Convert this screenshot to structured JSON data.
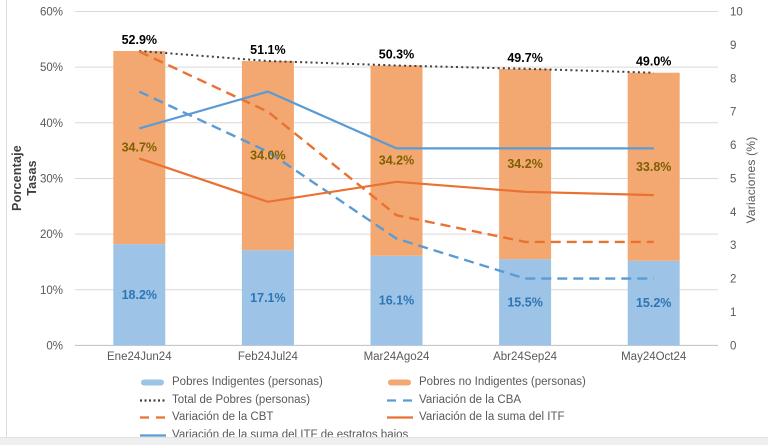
{
  "chart_data": {
    "type": "bar",
    "subtype": "stacked-bars-with-line-overlay",
    "title": "",
    "categories": [
      "Ene24Jun24",
      "Feb24Jul24",
      "Mar24Ago24",
      "Abr24Sep24",
      "May24Oct24"
    ],
    "bar_series": [
      {
        "name": "Pobres Indigentes (personas)",
        "axis": "left",
        "color": "#9DC3E6",
        "label_color": "#2E75B6",
        "values": [
          18.2,
          17.1,
          16.1,
          15.5,
          15.2
        ]
      },
      {
        "name": "Pobres no Indigentes (personas)",
        "axis": "left",
        "color": "#F3A871",
        "label_color": "#7F6000",
        "values": [
          34.7,
          34.0,
          34.2,
          34.2,
          33.8
        ]
      }
    ],
    "line_series": [
      {
        "name": "Total de Pobres (personas)",
        "axis": "left",
        "style": "dotted",
        "color": "#404040",
        "label_color": "#000000",
        "show_labels": true,
        "values": [
          52.9,
          51.1,
          50.3,
          49.7,
          49.0
        ]
      },
      {
        "name": "Variación de la CBA",
        "axis": "right",
        "style": "dashed",
        "color": "#5B9BD5",
        "show_labels": false,
        "values": [
          7.6,
          5.8,
          3.2,
          2.0,
          2.0
        ]
      },
      {
        "name": "Variación de la CBT",
        "axis": "right",
        "style": "dashed",
        "color": "#E97132",
        "show_labels": false,
        "values": [
          8.8,
          7.0,
          3.9,
          3.1,
          3.1
        ]
      },
      {
        "name": "Variación de la suma del ITF",
        "axis": "right",
        "style": "solid",
        "color": "#E97132",
        "show_labels": false,
        "values": [
          5.6,
          4.3,
          4.9,
          4.6,
          4.5
        ]
      },
      {
        "name": "Variación de la suma del ITF de estratos bajos",
        "axis": "right",
        "style": "solid",
        "color": "#5B9BD5",
        "show_labels": false,
        "values": [
          6.5,
          7.6,
          5.9,
          5.9,
          5.9
        ]
      }
    ],
    "left_axis": {
      "title": "Porcentaje Tasas",
      "title_line1": "Porcentaje",
      "title_line2": "Tasas",
      "min": 0,
      "max": 60,
      "step": 10,
      "tick_suffix": "%"
    },
    "right_axis": {
      "title": "Variaciones (%)",
      "min": 0,
      "max": 10,
      "step": 1,
      "tick_suffix": ""
    },
    "grid": true,
    "legend_position": "bottom",
    "legend": [
      {
        "label": "Pobres Indigentes (personas)",
        "swatch": "bar",
        "color": "#9DC3E6"
      },
      {
        "label": "Pobres no Indigentes (personas)",
        "swatch": "bar",
        "color": "#F3A871"
      },
      {
        "label": "Total de Pobres (personas)",
        "swatch": "dotted",
        "color": "#404040"
      },
      {
        "label": "Variación de la CBA",
        "swatch": "dashed",
        "color": "#5B9BD5"
      },
      {
        "label": "Variación de la CBT",
        "swatch": "dashed",
        "color": "#E97132"
      },
      {
        "label": "Variación de la suma del ITF",
        "swatch": "solid",
        "color": "#E97132"
      },
      {
        "label": "Variación de la suma del ITF de estratos bajos",
        "swatch": "solid",
        "color": "#5B9BD5"
      }
    ],
    "colors": {
      "grid": "#D9D9D9",
      "axis_line": "#BFBFBF",
      "tick_text": "#595959"
    }
  }
}
